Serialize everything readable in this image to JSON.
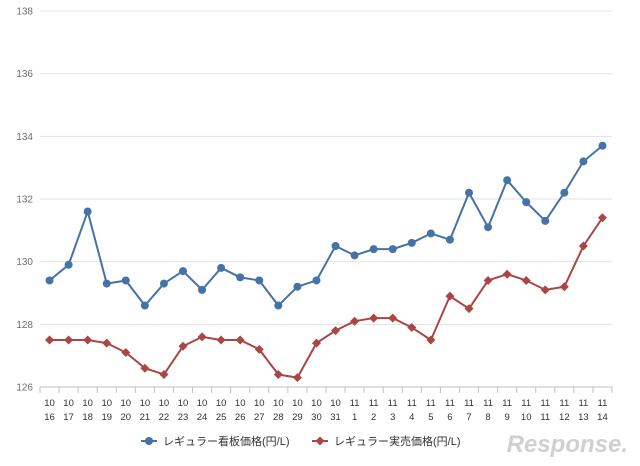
{
  "chart_data": {
    "type": "line",
    "categories": [
      [
        "10",
        "16"
      ],
      [
        "10",
        "17"
      ],
      [
        "10",
        "18"
      ],
      [
        "10",
        "19"
      ],
      [
        "10",
        "20"
      ],
      [
        "10",
        "21"
      ],
      [
        "10",
        "22"
      ],
      [
        "10",
        "23"
      ],
      [
        "10",
        "24"
      ],
      [
        "10",
        "25"
      ],
      [
        "10",
        "26"
      ],
      [
        "10",
        "27"
      ],
      [
        "10",
        "28"
      ],
      [
        "10",
        "29"
      ],
      [
        "10",
        "30"
      ],
      [
        "10",
        "31"
      ],
      [
        "11",
        "1"
      ],
      [
        "11",
        "2"
      ],
      [
        "11",
        "3"
      ],
      [
        "11",
        "4"
      ],
      [
        "11",
        "5"
      ],
      [
        "11",
        "6"
      ],
      [
        "11",
        "7"
      ],
      [
        "11",
        "8"
      ],
      [
        "11",
        "9"
      ],
      [
        "11",
        "10"
      ],
      [
        "11",
        "11"
      ],
      [
        "11",
        "12"
      ],
      [
        "11",
        "13"
      ],
      [
        "11",
        "14"
      ]
    ],
    "series": [
      {
        "name": "レギュラー看板価格(円/L)",
        "color": "#4572a7",
        "marker": "circle",
        "values": [
          129.4,
          129.9,
          131.6,
          129.3,
          129.4,
          128.6,
          129.3,
          129.7,
          129.1,
          129.8,
          129.5,
          129.4,
          128.6,
          129.2,
          129.4,
          130.5,
          130.2,
          130.4,
          130.4,
          130.6,
          130.9,
          130.7,
          132.2,
          131.1,
          132.6,
          131.9,
          131.3,
          132.2,
          133.2,
          133.7
        ]
      },
      {
        "name": "レギュラー実売価格(円/L)",
        "color": "#aa4643",
        "marker": "diamond",
        "values": [
          127.5,
          127.5,
          127.5,
          127.4,
          127.1,
          126.6,
          126.4,
          127.3,
          127.6,
          127.5,
          127.5,
          127.2,
          126.4,
          126.3,
          127.4,
          127.8,
          128.1,
          128.2,
          128.2,
          127.9,
          127.5,
          128.9,
          128.5,
          129.4,
          129.6,
          129.4,
          129.1,
          129.2,
          130.5,
          131.4
        ]
      }
    ],
    "ylim": [
      126,
      138
    ],
    "yticks": [
      "126",
      "128",
      "130",
      "132",
      "134",
      "136",
      "138"
    ],
    "grid": true,
    "legend": "bottom-center",
    "xlabel": "",
    "ylabel": "",
    "title": ""
  },
  "watermark": "Response."
}
